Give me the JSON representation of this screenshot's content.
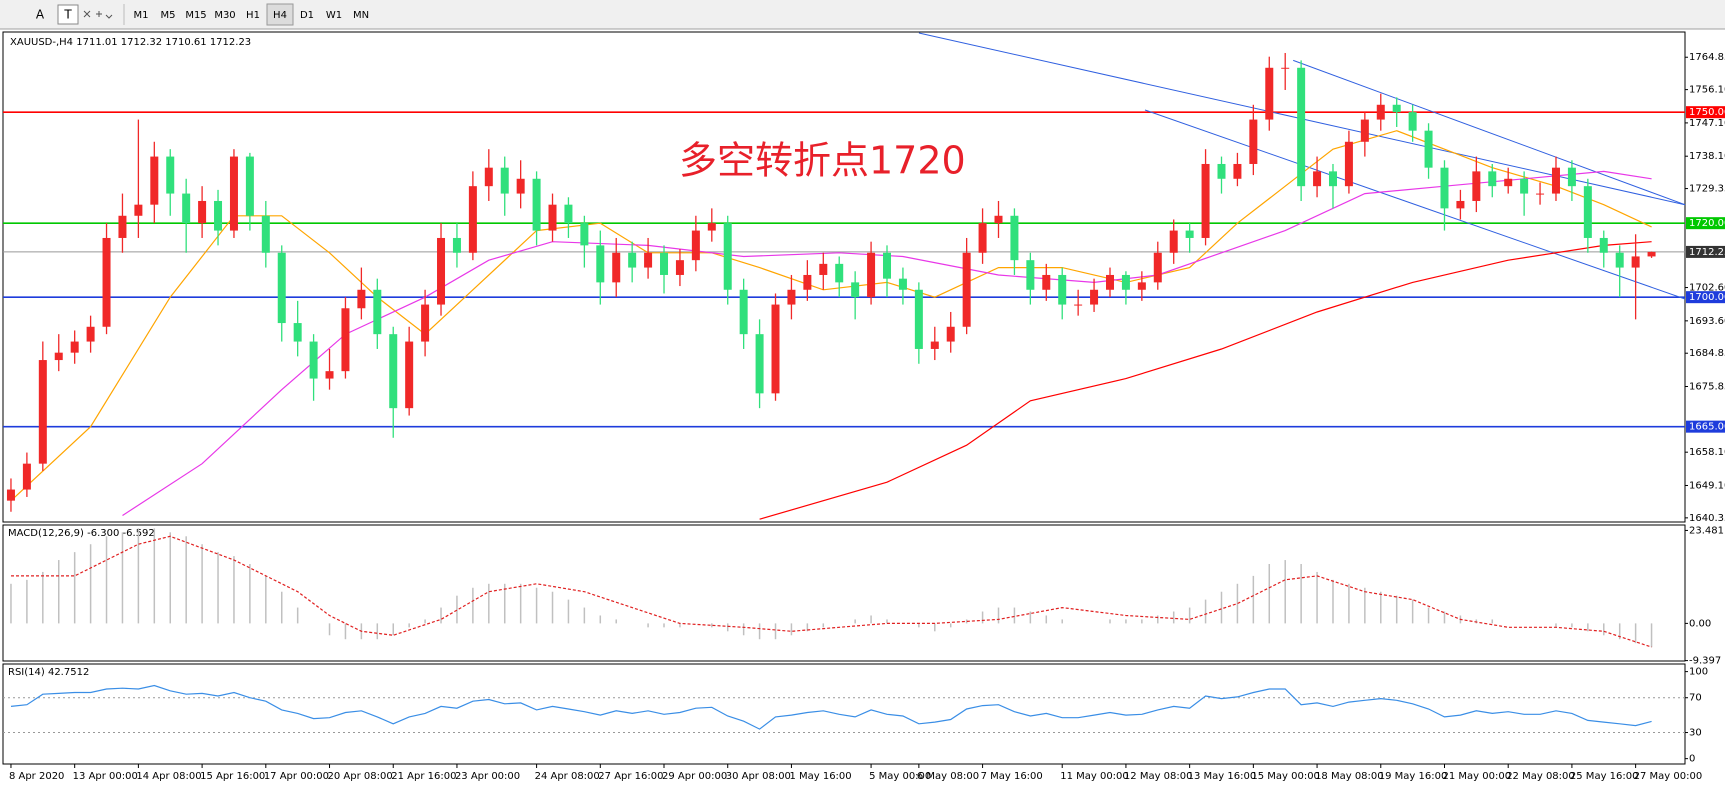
{
  "toolbar": {
    "tools": [
      "A",
      "T"
    ],
    "timeframes": [
      "M1",
      "M5",
      "M15",
      "M30",
      "H1",
      "H4",
      "D1",
      "W1",
      "MN"
    ],
    "selected": "H4"
  },
  "chart_data": [
    {
      "type": "candlestick",
      "title": "XAUUSD-,H4  1711.01 1712.32 1710.61 1712.23",
      "annotation": "多空转折点1720",
      "up_color": "#f02828",
      "down_color": "#30e07c",
      "xlim": [
        -0.5,
        105.1
      ],
      "ylim": [
        1639.5,
        1771.4
      ],
      "yticks": [
        1764.85,
        {
          "value": 1756.1,
          "label": "1756.10"
        },
        {
          "value": 1747.1,
          "label": "1747.10"
        },
        {
          "value": 1738.1,
          "label": "1738.10"
        },
        1729.35,
        {
          "value": 1702.6,
          "label": "1702.60"
        },
        {
          "value": 1693.6,
          "label": "1693.60"
        },
        1684.85,
        1675.85,
        {
          "value": 1658.1,
          "label": "1658.10"
        },
        {
          "value": 1649.1,
          "label": "1649.10"
        },
        1640.35
      ],
      "categories": [
        "8 Apr 2020",
        null,
        null,
        null,
        "13 Apr 00:00",
        null,
        null,
        null,
        "14 Apr 08:00",
        null,
        null,
        null,
        "15 Apr 16:00",
        null,
        null,
        null,
        "17 Apr 00:00",
        null,
        null,
        null,
        "20 Apr 08:00",
        null,
        null,
        null,
        "21 Apr 16:00",
        null,
        null,
        null,
        "23 Apr 00:00",
        null,
        null,
        null,
        null,
        "24 Apr 08:00",
        null,
        null,
        null,
        "27 Apr 16:00",
        null,
        null,
        null,
        "29 Apr 00:00",
        null,
        null,
        null,
        "30 Apr 08:00",
        null,
        null,
        null,
        "1 May 16:00",
        null,
        null,
        null,
        null,
        "5 May 00:00",
        null,
        null,
        "6 May 08:00",
        null,
        null,
        null,
        "7 May 16:00",
        null,
        null,
        null,
        null,
        "11 May 00:00",
        null,
        null,
        null,
        "12 May 08:00",
        null,
        null,
        null,
        "13 May 16:00",
        null,
        null,
        null,
        "15 May 00:00",
        null,
        null,
        null,
        "18 May 08:00",
        null,
        null,
        null,
        "19 May 16:00",
        null,
        null,
        null,
        "21 May 00:00",
        null,
        null,
        null,
        "22 May 08:00",
        null,
        null,
        null,
        "25 May 16:00",
        null,
        null,
        null,
        "27 May 00:00",
        null
      ],
      "candles": [
        [
          1645,
          1651,
          1642,
          1648
        ],
        [
          1648,
          1658,
          1646,
          1655
        ],
        [
          1655,
          1688,
          1653,
          1683
        ],
        [
          1683,
          1690,
          1680,
          1685
        ],
        [
          1685,
          1691,
          1682,
          1688
        ],
        [
          1688,
          1695,
          1685,
          1692
        ],
        [
          1692,
          1720,
          1690,
          1716
        ],
        [
          1716,
          1728,
          1712,
          1722
        ],
        [
          1722,
          1748,
          1716,
          1725
        ],
        [
          1725,
          1742,
          1720,
          1738
        ],
        [
          1738,
          1740,
          1722,
          1728
        ],
        [
          1728,
          1732,
          1712,
          1720
        ],
        [
          1720,
          1730,
          1716,
          1726
        ],
        [
          1726,
          1729,
          1714,
          1718
        ],
        [
          1718,
          1740,
          1716,
          1738
        ],
        [
          1738,
          1739,
          1718,
          1722
        ],
        [
          1722,
          1726,
          1708,
          1712
        ],
        [
          1712,
          1714,
          1688,
          1693
        ],
        [
          1693,
          1699,
          1684,
          1688
        ],
        [
          1688,
          1690,
          1672,
          1678
        ],
        [
          1678,
          1686,
          1675,
          1680
        ],
        [
          1680,
          1700,
          1678,
          1697
        ],
        [
          1697,
          1708,
          1694,
          1702
        ],
        [
          1702,
          1705,
          1686,
          1690
        ],
        [
          1690,
          1692,
          1662,
          1670
        ],
        [
          1670,
          1692,
          1668,
          1688
        ],
        [
          1688,
          1702,
          1684,
          1698
        ],
        [
          1698,
          1720,
          1695,
          1716
        ],
        [
          1716,
          1720,
          1708,
          1712
        ],
        [
          1712,
          1734,
          1710,
          1730
        ],
        [
          1730,
          1740,
          1726,
          1735
        ],
        [
          1735,
          1738,
          1722,
          1728
        ],
        [
          1728,
          1737,
          1724,
          1732
        ],
        [
          1732,
          1734,
          1714,
          1718
        ],
        [
          1718,
          1728,
          1715,
          1725
        ],
        [
          1725,
          1727,
          1716,
          1720
        ],
        [
          1720,
          1722,
          1708,
          1714
        ],
        [
          1714,
          1718,
          1698,
          1704
        ],
        [
          1704,
          1716,
          1700,
          1712
        ],
        [
          1712,
          1715,
          1704,
          1708
        ],
        [
          1708,
          1716,
          1705,
          1712
        ],
        [
          1712,
          1714,
          1701,
          1706
        ],
        [
          1706,
          1713,
          1703,
          1710
        ],
        [
          1710,
          1722,
          1707,
          1718
        ],
        [
          1718,
          1724,
          1715,
          1720
        ],
        [
          1720,
          1722,
          1698,
          1702
        ],
        [
          1702,
          1705,
          1686,
          1690
        ],
        [
          1690,
          1694,
          1670,
          1674
        ],
        [
          1674,
          1701,
          1672,
          1698
        ],
        [
          1698,
          1706,
          1694,
          1702
        ],
        [
          1702,
          1710,
          1699,
          1706
        ],
        [
          1706,
          1712,
          1702,
          1709
        ],
        [
          1709,
          1711,
          1700,
          1704
        ],
        [
          1704,
          1707,
          1694,
          1700
        ],
        [
          1700,
          1715,
          1698,
          1712
        ],
        [
          1712,
          1714,
          1700,
          1705
        ],
        [
          1705,
          1708,
          1698,
          1702
        ],
        [
          1702,
          1704,
          1682,
          1686
        ],
        [
          1686,
          1692,
          1683,
          1688
        ],
        [
          1688,
          1696,
          1685,
          1692
        ],
        [
          1692,
          1716,
          1690,
          1712
        ],
        [
          1712,
          1724,
          1709,
          1720
        ],
        [
          1720,
          1726,
          1716,
          1722
        ],
        [
          1722,
          1724,
          1706,
          1710
        ],
        [
          1710,
          1712,
          1698,
          1702
        ],
        [
          1702,
          1709,
          1699,
          1706
        ],
        [
          1706,
          1708,
          1694,
          1698
        ],
        [
          1698,
          1702,
          1695,
          1698
        ],
        [
          1698,
          1705,
          1696,
          1702
        ],
        [
          1702,
          1708,
          1700,
          1706
        ],
        [
          1706,
          1707,
          1698,
          1702
        ],
        [
          1702,
          1707,
          1699,
          1704
        ],
        [
          1704,
          1715,
          1702,
          1712
        ],
        [
          1712,
          1721,
          1709,
          1718
        ],
        [
          1718,
          1720,
          1712,
          1716
        ],
        [
          1716,
          1740,
          1714,
          1736
        ],
        [
          1736,
          1738,
          1728,
          1732
        ],
        [
          1732,
          1739,
          1730,
          1736
        ],
        [
          1736,
          1752,
          1733,
          1748
        ],
        [
          1748,
          1765,
          1745,
          1762
        ],
        [
          1762,
          1766,
          1756,
          1762
        ],
        [
          1762,
          1764,
          1726,
          1730
        ],
        [
          1730,
          1738,
          1727,
          1734
        ],
        [
          1734,
          1736,
          1724,
          1730
        ],
        [
          1730,
          1745,
          1728,
          1742
        ],
        [
          1742,
          1750,
          1738,
          1748
        ],
        [
          1748,
          1755,
          1745,
          1752
        ],
        [
          1752,
          1754,
          1746,
          1750
        ],
        [
          1750,
          1752,
          1742,
          1745
        ],
        [
          1745,
          1747,
          1732,
          1735
        ],
        [
          1735,
          1737,
          1718,
          1724
        ],
        [
          1724,
          1729,
          1721,
          1726
        ],
        [
          1726,
          1738,
          1723,
          1734
        ],
        [
          1734,
          1736,
          1727,
          1730
        ],
        [
          1730,
          1735,
          1728,
          1732
        ],
        [
          1732,
          1734,
          1722,
          1728
        ],
        [
          1728,
          1731,
          1725,
          1728
        ],
        [
          1728,
          1738,
          1726,
          1735
        ],
        [
          1735,
          1737,
          1726,
          1730
        ],
        [
          1730,
          1732,
          1712,
          1716
        ],
        [
          1716,
          1718,
          1708,
          1712
        ],
        [
          1712,
          1714,
          1700,
          1708
        ],
        [
          1708,
          1717,
          1694,
          1711.01
        ],
        [
          1711.01,
          1712.32,
          1710.61,
          1712.23
        ]
      ],
      "ma": [
        {
          "color": "#ffa500",
          "x": [
            0,
            5,
            10,
            14,
            17,
            20,
            23,
            26,
            29,
            33,
            37,
            40,
            44,
            47,
            51,
            55,
            58,
            62,
            66,
            70,
            74,
            77,
            80,
            83,
            87,
            90,
            93,
            97,
            100,
            103
          ],
          "values": [
            1645,
            1665,
            1700,
            1722,
            1722,
            1712,
            1700,
            1690,
            1702,
            1718,
            1720,
            1712,
            1712,
            1708,
            1702,
            1704,
            1700,
            1708,
            1708,
            1704,
            1708,
            1720,
            1730,
            1740,
            1745,
            1740,
            1735,
            1730,
            1725,
            1719
          ]
        },
        {
          "color": "#e838e8",
          "x": [
            7,
            12,
            17,
            21,
            26,
            30,
            34,
            40,
            46,
            52,
            56,
            62,
            68,
            72,
            76,
            80,
            85,
            90,
            95,
            100,
            103
          ],
          "values": [
            1641,
            1655,
            1675,
            1690,
            1700,
            1710,
            1715,
            1714,
            1711,
            1712,
            1711,
            1706,
            1704,
            1706,
            1712,
            1718,
            1728,
            1730,
            1732,
            1734,
            1732
          ]
        },
        {
          "color": "#ff0000",
          "x": [
            47,
            55,
            60,
            64,
            70,
            76,
            82,
            88,
            94,
            100,
            103
          ],
          "values": [
            1640,
            1650,
            1660,
            1672,
            1678,
            1686,
            1696,
            1704,
            1710,
            1714,
            1715
          ]
        }
      ],
      "trendlines": [
        {
          "color": "#3060e0",
          "x": [
            57,
            105.1
          ],
          "values": [
            1771.4,
            1725
          ]
        },
        {
          "color": "#3060e0",
          "x": [
            80.5,
            105.1
          ],
          "values": [
            1764,
            1725
          ]
        },
        {
          "color": "#3060e0",
          "x": [
            71.2,
            105.1
          ],
          "values": [
            1750.6,
            1699.5
          ]
        }
      ],
      "levels": [
        {
          "value": 1750,
          "label": "1750.00",
          "color": "#ff0000"
        },
        {
          "value": 1720,
          "label": "1720.00",
          "color": "#00c800"
        },
        {
          "value": 1700,
          "label": "1700.00",
          "color": "#1e3cdc"
        },
        {
          "value": 1665,
          "label": "1665.00",
          "color": "#1e3cdc"
        }
      ],
      "current_price": 1712.23,
      "current_color": "#999999",
      "current_label_color": "#333333"
    },
    {
      "type": "macd",
      "title": "MACD(12,26,9) -6.300 -6.592",
      "ylim": [
        -9.5,
        24.6
      ],
      "yticks": [
        23.481,
        {
          "value": 0,
          "label": "0.00"
        },
        -9.397
      ],
      "values": [
        10,
        11,
        13,
        16,
        18,
        20,
        22,
        23,
        24,
        24,
        23,
        22,
        20,
        18,
        17,
        15,
        12,
        8,
        4,
        0,
        -3,
        -4,
        -4,
        -4,
        -3,
        -1,
        1,
        4,
        7,
        9,
        10,
        10,
        10,
        9,
        8,
        6,
        4,
        2,
        1,
        0,
        -1,
        -1,
        -1,
        0,
        -1,
        -2,
        -3,
        -4,
        -4,
        -3,
        -2,
        -1,
        0,
        1,
        2,
        1,
        0,
        -1,
        -2,
        -1,
        1,
        3,
        4,
        4,
        3,
        2,
        1,
        0,
        0,
        1,
        1,
        1,
        2,
        3,
        4,
        6,
        8,
        10,
        12,
        15,
        16,
        15,
        13,
        11,
        10,
        9,
        8,
        7,
        6,
        4,
        3,
        2,
        1,
        1,
        0,
        0,
        0,
        -1,
        -1,
        -2,
        -3,
        -4,
        -5,
        -6
      ],
      "color": "#c0c0c0",
      "signal": {
        "color": "#e02020",
        "x": [
          0,
          4,
          8,
          10,
          14,
          18,
          20,
          22,
          24,
          27,
          30,
          33,
          36,
          39,
          42,
          46,
          49,
          52,
          55,
          58,
          62,
          66,
          70,
          74,
          77,
          80,
          82,
          85,
          88,
          91,
          94,
          97,
          100,
          103
        ],
        "values": [
          12,
          12,
          20,
          22,
          16,
          8,
          2,
          -2,
          -3,
          1,
          8,
          10,
          8,
          4,
          0,
          -1,
          -2,
          -1,
          0,
          0,
          1,
          4,
          2,
          1,
          5,
          11,
          12,
          8,
          6,
          1,
          -1,
          -1,
          -2,
          -6
        ]
      }
    },
    {
      "type": "line",
      "title": "RSI(14) 42.7512",
      "ylim": [
        -5,
        107.6
      ],
      "yticks": [
        100,
        70,
        30,
        0
      ],
      "levels": [
        70,
        30
      ],
      "color": "#3a8ee6",
      "values": [
        60,
        62,
        74,
        75,
        76,
        76,
        80,
        81,
        80,
        84,
        78,
        74,
        75,
        72,
        76,
        70,
        66,
        56,
        52,
        46,
        47,
        53,
        55,
        48,
        40,
        48,
        52,
        60,
        58,
        66,
        68,
        63,
        64,
        56,
        60,
        57,
        54,
        50,
        55,
        52,
        55,
        51,
        53,
        58,
        59,
        49,
        43,
        34,
        48,
        50,
        53,
        55,
        51,
        48,
        56,
        51,
        49,
        40,
        42,
        45,
        57,
        61,
        62,
        54,
        49,
        52,
        47,
        47,
        50,
        53,
        50,
        51,
        56,
        60,
        58,
        72,
        69,
        71,
        76,
        80,
        80,
        62,
        64,
        60,
        65,
        67,
        69,
        67,
        63,
        57,
        48,
        50,
        55,
        52,
        54,
        51,
        51,
        55,
        52,
        44,
        42,
        40,
        38,
        42.75
      ]
    }
  ]
}
